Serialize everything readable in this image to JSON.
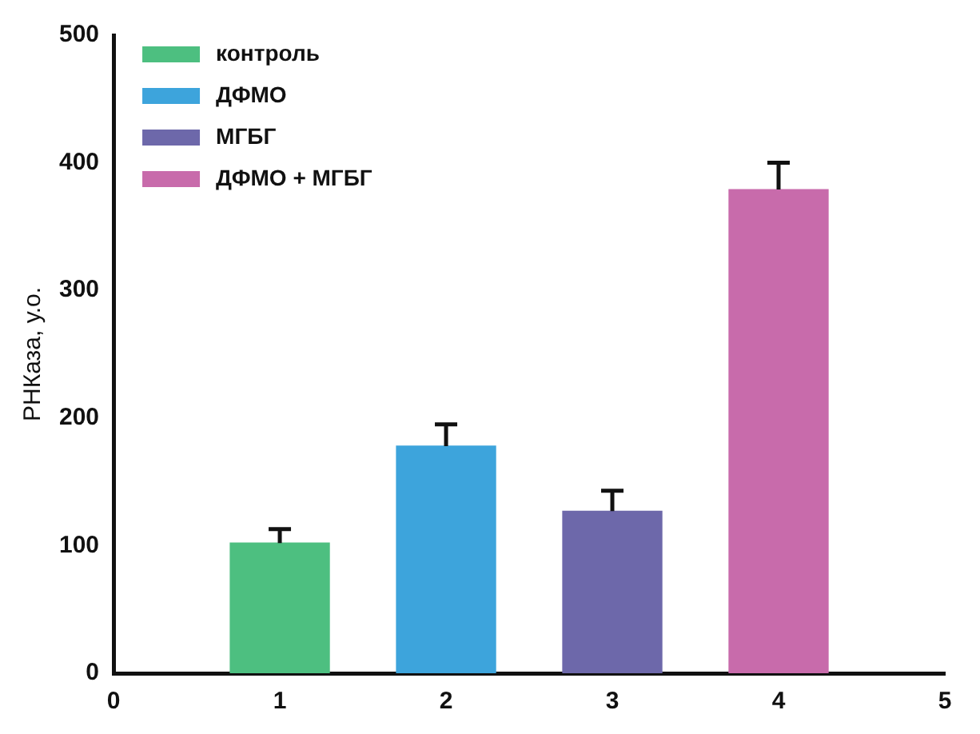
{
  "chart_data": {
    "type": "bar",
    "ylabel": "РНКаза, у.о.",
    "xlim": [
      0,
      5
    ],
    "xticks": [
      0,
      1,
      2,
      3,
      4,
      5
    ],
    "ylim": [
      0,
      500
    ],
    "yticks": [
      0,
      100,
      200,
      300,
      400,
      500
    ],
    "grid": false,
    "legend": "top left",
    "series": [
      {
        "name": "контроль",
        "color": "#4dbf80",
        "x": [
          1
        ],
        "values": [
          102
        ],
        "errors": [
          [
            102,
            113
          ]
        ]
      },
      {
        "name": "ДФМО",
        "color": "#3da4dc",
        "x": [
          2
        ],
        "values": [
          178
        ],
        "errors": [
          [
            178,
            195
          ]
        ]
      },
      {
        "name": "МГБГ",
        "color": "#6d68aa",
        "x": [
          3
        ],
        "values": [
          127
        ],
        "errors": [
          [
            127,
            143
          ]
        ]
      },
      {
        "name": "ДФМО + МГБГ",
        "color": "#c86bab",
        "x": [
          4
        ],
        "values": [
          379
        ],
        "errors": [
          [
            379,
            400
          ]
        ]
      }
    ]
  }
}
